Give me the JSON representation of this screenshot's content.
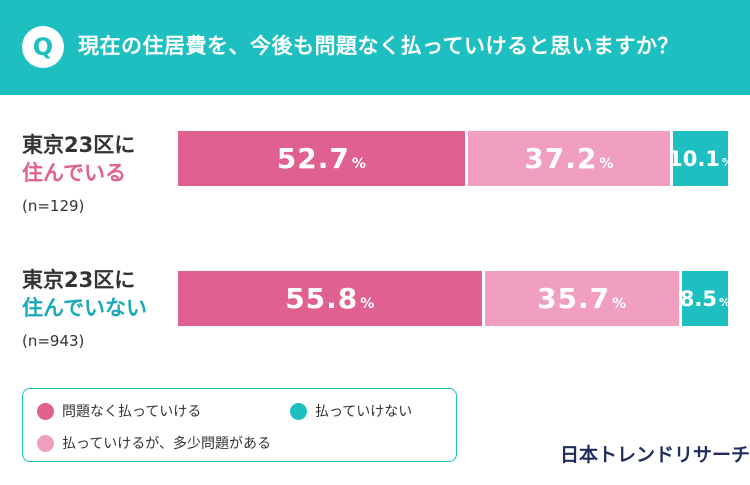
{
  "header": {
    "badge": "Q",
    "question": "現在の住居費を、今後も問題なく払っていけると思いますか？"
  },
  "colors": {
    "header": "#1dbfc1",
    "no_problem": "#e0608f",
    "some_problem": "#f19fc1",
    "cannot_pay": "#1dbfc1"
  },
  "chart_data": {
    "type": "bar",
    "orientation": "horizontal",
    "stacked": true,
    "categories": [
      {
        "line1": "東京23区に",
        "line2": "住んでいる",
        "n": "(n=129)"
      },
      {
        "line1": "東京23区に",
        "line2": "住んでいない",
        "n": "(n=943)"
      }
    ],
    "series": [
      {
        "name": "問題なく払っていける",
        "values": [
          52.7,
          55.8
        ],
        "color": "#e0608f"
      },
      {
        "name": "払っていけるが、多少問題がある",
        "values": [
          37.2,
          35.7
        ],
        "color": "#f19fc1"
      },
      {
        "name": "払っていけない",
        "values": [
          10.1,
          8.5
        ],
        "color": "#1dbfc1"
      }
    ],
    "value_suffix": "%",
    "xlim": [
      0,
      100
    ]
  },
  "legend": {
    "items": [
      {
        "label": "問題なく払っていける",
        "color": "#e0608f"
      },
      {
        "label": "払っていけない",
        "color": "#1dbfc1"
      },
      {
        "label": "払っていけるが、多少問題がある",
        "color": "#f19fc1"
      }
    ]
  },
  "brand": {
    "logo": "日本トレンドリサーチ"
  }
}
